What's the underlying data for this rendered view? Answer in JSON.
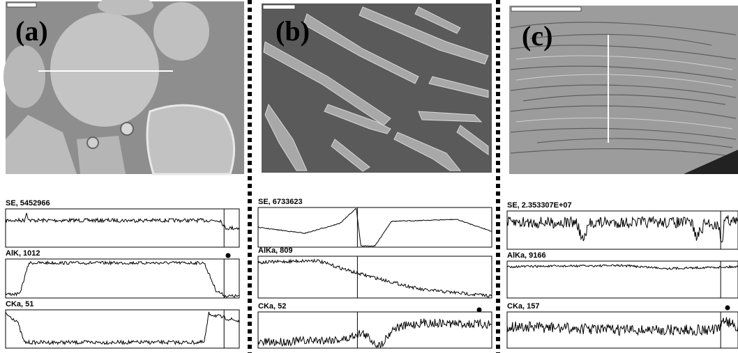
{
  "panels": [
    {
      "label": "(a)",
      "scans": [
        {
          "label": "SE, 5452966"
        },
        {
          "label": "AlK, 1012"
        },
        {
          "label": "CKa, 51"
        }
      ]
    },
    {
      "label": "(b)",
      "scans": [
        {
          "label": "SE, 6733623"
        },
        {
          "label": "AlKa, 809"
        },
        {
          "label": "CKa, 52"
        }
      ]
    },
    {
      "label": "(c)",
      "scans": [
        {
          "label": "SE, 2.353307E+07"
        },
        {
          "label": "AlKa, 9166"
        },
        {
          "label": "CKa, 157"
        }
      ]
    }
  ]
}
